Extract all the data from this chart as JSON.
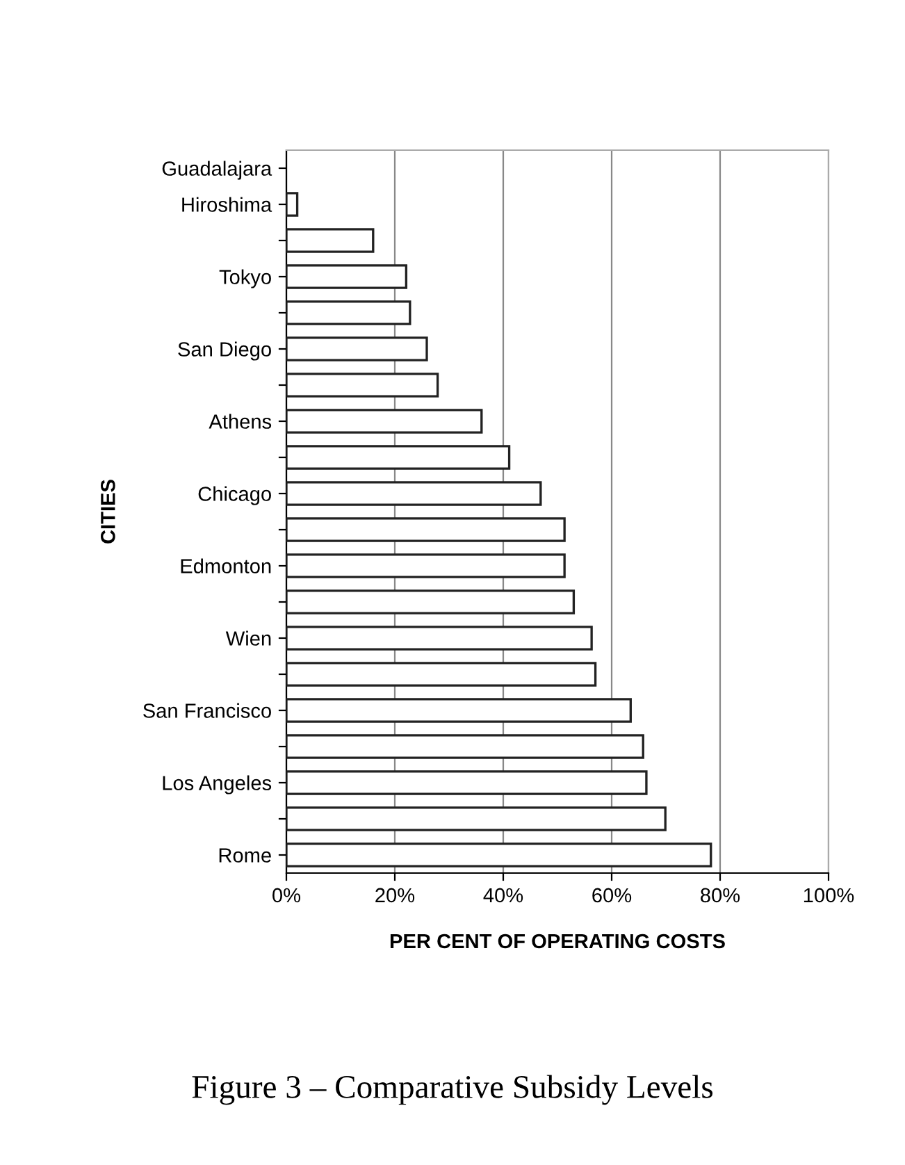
{
  "chart_data": {
    "type": "bar",
    "orientation": "horizontal",
    "title": "Figure 3 – Comparative Subsidy Levels",
    "xlabel": "PER CENT OF OPERATING COSTS",
    "ylabel": "CITIES",
    "categories": [
      "Guadalajara",
      "Hiroshima",
      null,
      "Tokyo",
      null,
      "San Diego",
      null,
      "Athens",
      null,
      "Chicago",
      null,
      "Edmonton",
      null,
      "Wien",
      null,
      "San Francisco",
      null,
      "Los Angeles",
      null,
      "Rome"
    ],
    "values": [
      0,
      2.0,
      16.0,
      22.1,
      22.8,
      25.9,
      27.9,
      36.0,
      41.1,
      46.9,
      51.3,
      51.3,
      53.0,
      56.3,
      57.0,
      63.5,
      65.8,
      66.4,
      69.9,
      78.3
    ],
    "color": "#ffffff",
    "xlim": [
      0,
      100
    ],
    "xticks": [
      {
        "value": 0,
        "label": "0%"
      },
      {
        "value": 20,
        "label": "20%"
      },
      {
        "value": 40,
        "label": "40%"
      },
      {
        "value": 60,
        "label": "60%"
      },
      {
        "value": 80,
        "label": "80%"
      },
      {
        "value": 100,
        "label": "100%"
      }
    ],
    "grid": "x"
  }
}
